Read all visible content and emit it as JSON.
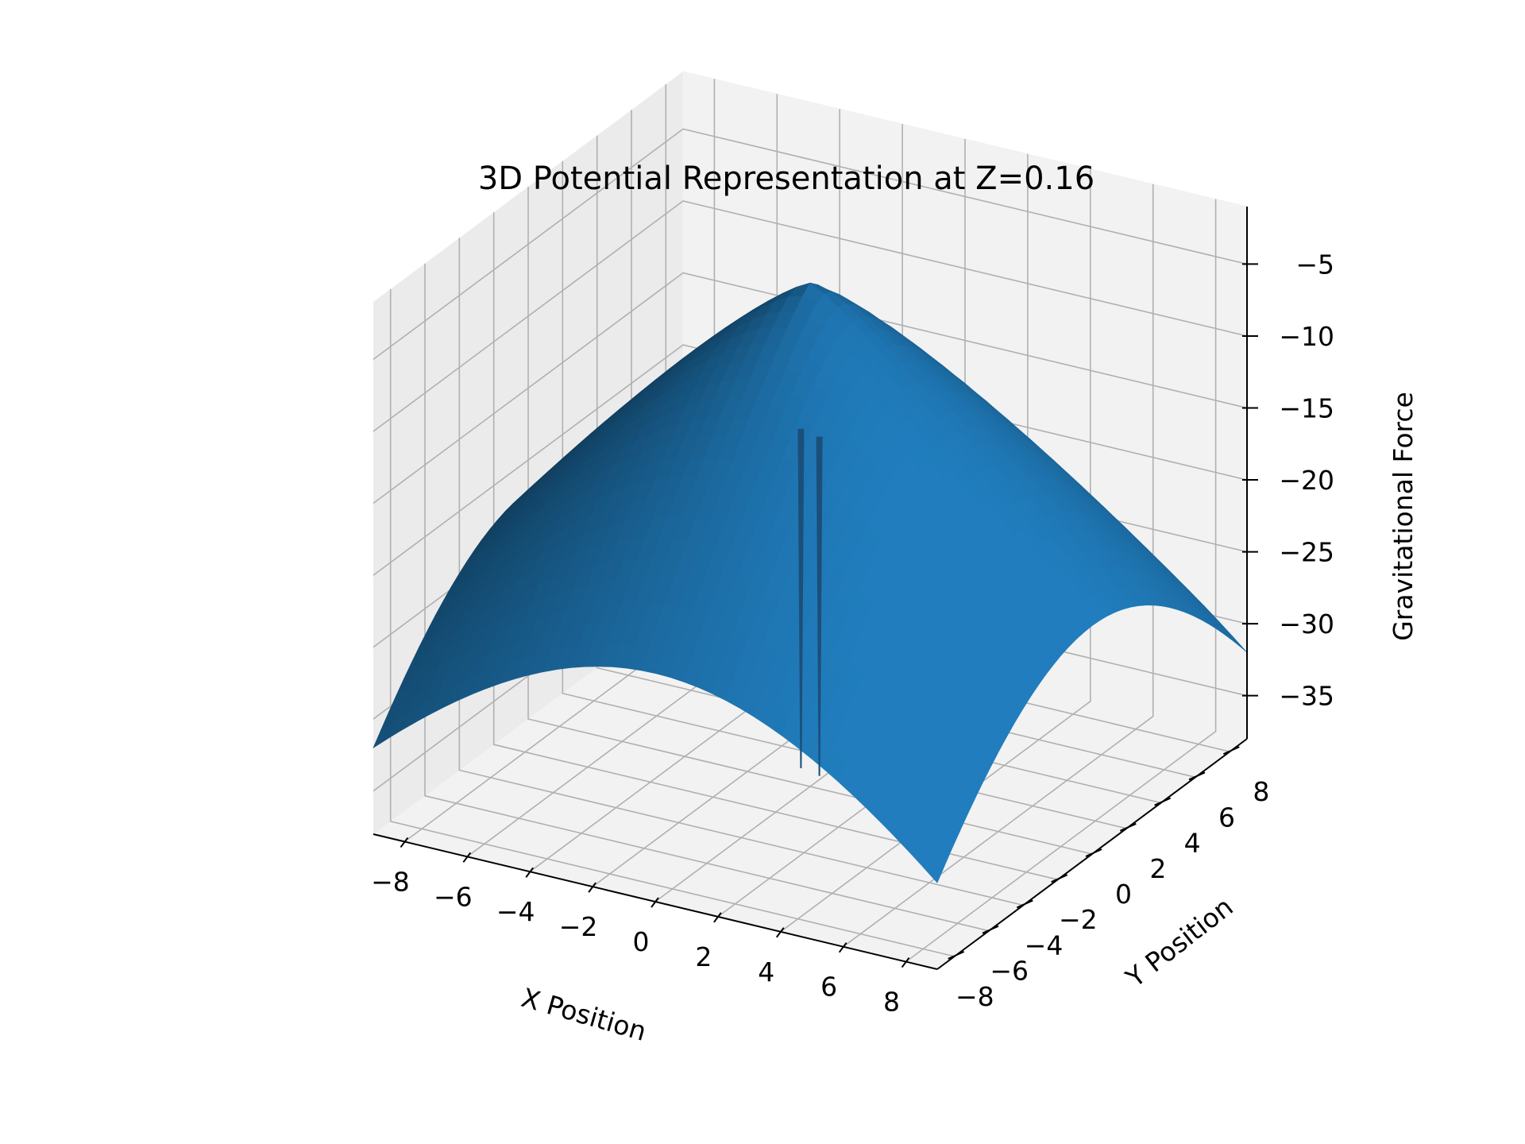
{
  "chart_data": {
    "type": "surface3d",
    "title": "3D Potential Representation at Z=0.16",
    "xlabel": "X Position",
    "ylabel": "Y Position",
    "zlabel": "Gravitational Force",
    "xlim": [
      -9,
      9
    ],
    "ylim": [
      -9,
      9
    ],
    "zlim": [
      -38,
      -1
    ],
    "xticks": [
      -8,
      -6,
      -4,
      -2,
      0,
      2,
      4,
      6,
      8
    ],
    "yticks": [
      -8,
      -6,
      -4,
      -2,
      0,
      2,
      4,
      6,
      8
    ],
    "zticks": [
      -5,
      -10,
      -15,
      -20,
      -25,
      -30,
      -35
    ],
    "xtick_labels": [
      "−8",
      "−6",
      "−4",
      "−2",
      "0",
      "2",
      "4",
      "6",
      "8"
    ],
    "ytick_labels": [
      "−8",
      "−6",
      "−4",
      "−2",
      "0",
      "2",
      "4",
      "6",
      "8"
    ],
    "ztick_labels": [
      "−5",
      "−10",
      "−15",
      "−20",
      "−25",
      "−30",
      "−35"
    ],
    "grid": true,
    "surface_color": "#1f77b4",
    "surface_samples": [
      {
        "x": 0,
        "y": 0,
        "z": -3
      },
      {
        "x": 9,
        "y": 9,
        "z": -33
      },
      {
        "x": -9,
        "y": -9,
        "z": -33
      },
      {
        "x": 9,
        "y": -9,
        "z": -33
      },
      {
        "x": -9,
        "y": 9,
        "z": -33
      }
    ]
  }
}
